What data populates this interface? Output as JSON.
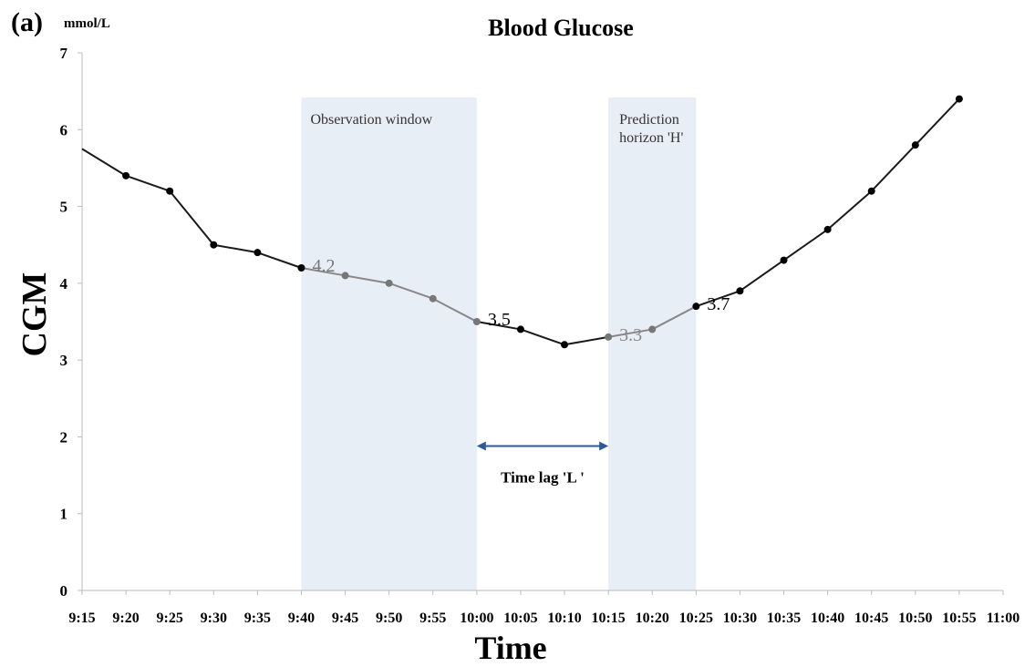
{
  "panel_label": "(a)",
  "chart_data": {
    "type": "line",
    "title": "Blood Glucose",
    "unit_label": "mmol/L",
    "xlabel": "Time",
    "ylabel": "CGM",
    "ylim": [
      0,
      7
    ],
    "yticks": [
      "0",
      "1",
      "2",
      "3",
      "4",
      "5",
      "6",
      "7"
    ],
    "categories": [
      "9:15",
      "9:20",
      "9:25",
      "9:30",
      "9:35",
      "9:40",
      "9:45",
      "9:50",
      "9:55",
      "10:00",
      "10:05",
      "10:10",
      "10:15",
      "10:20",
      "10:25",
      "10:30",
      "10:35",
      "10:40",
      "10:45",
      "10:50",
      "10:55",
      "11:00"
    ],
    "series": [
      {
        "color": "#000000",
        "x": [
          "9:15",
          "9:20",
          "9:25",
          "9:30",
          "9:35",
          "9:40",
          "9:45",
          "9:50",
          "9:55",
          "10:00",
          "10:05",
          "10:10",
          "10:15",
          "10:20",
          "10:25",
          "10:30",
          "10:35",
          "10:40",
          "10:45",
          "10:50",
          "10:55"
        ],
        "values": [
          5.75,
          5.4,
          5.2,
          4.5,
          4.4,
          4.2,
          4.1,
          4.0,
          3.8,
          3.5,
          3.4,
          3.2,
          3.3,
          3.4,
          3.7,
          3.9,
          4.3,
          4.7,
          5.2,
          5.8,
          6.4
        ]
      }
    ],
    "shaded_regions": [
      {
        "label": "Observation window",
        "from": "9:40",
        "to": "10:00",
        "color": "#e8eef6",
        "line_color": "#888888",
        "label_lines": [
          "Observation window"
        ]
      },
      {
        "label": "Prediction horizon 'H'",
        "from": "10:15",
        "to": "10:25",
        "color": "#e8eef6",
        "line_color": "#888888",
        "label_lines": [
          "Prediction",
          "horizon 'H'"
        ]
      }
    ],
    "annotations": [
      {
        "text": "4.2",
        "x": "9:40",
        "y": 4.2,
        "color": "#777777"
      },
      {
        "text": "3.5",
        "x": "10:00",
        "y": 3.5,
        "color": "#000000"
      },
      {
        "text": "3.3",
        "x": "10:15",
        "y": 3.3,
        "color": "#888888"
      },
      {
        "text": "3.7",
        "x": "10:25",
        "y": 3.7,
        "color": "#000000"
      }
    ],
    "time_lag": {
      "label": "Time lag 'L '",
      "from": "10:00",
      "to": "10:15",
      "y": 1.88,
      "color": "#2e5a9c"
    },
    "grid": false,
    "legend": "none"
  }
}
